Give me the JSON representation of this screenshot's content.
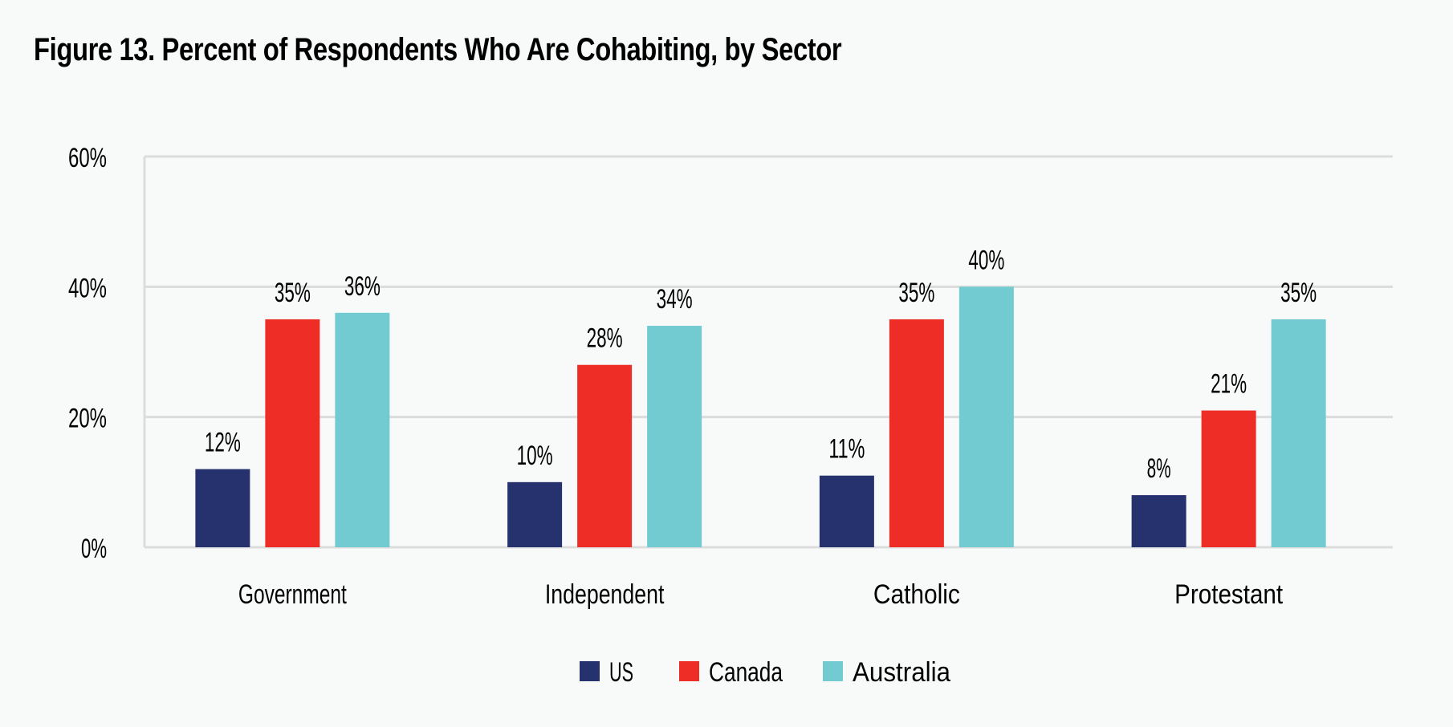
{
  "chart_data": {
    "type": "bar",
    "title": "Figure 13. Percent of Respondents Who Are Cohabiting, by Sector",
    "xlabel": "",
    "ylabel": "",
    "categories": [
      "Government",
      "Independent",
      "Catholic",
      "Protestant"
    ],
    "series": [
      {
        "name": "US",
        "color": "#26326e",
        "values": [
          12,
          10,
          11,
          8
        ]
      },
      {
        "name": "Canada",
        "color": "#ee2d27",
        "values": [
          35,
          28,
          35,
          21
        ]
      },
      {
        "name": "Australia",
        "color": "#72cbd0",
        "values": [
          36,
          34,
          40,
          35
        ]
      }
    ],
    "data_labels": [
      [
        "12%",
        "10%",
        "11%",
        "8%"
      ],
      [
        "35%",
        "28%",
        "35%",
        "21%"
      ],
      [
        "36%",
        "34%",
        "40%",
        "35%"
      ]
    ],
    "ylim": [
      0,
      60
    ],
    "yticks": [
      0,
      20,
      40,
      60
    ],
    "ytick_labels": [
      "0%",
      "20%",
      "40%",
      "60%"
    ],
    "grid": true,
    "legend": "bottom-center"
  },
  "colors": {
    "background": "#f8fafa",
    "gridline": "#dcdcdc"
  }
}
